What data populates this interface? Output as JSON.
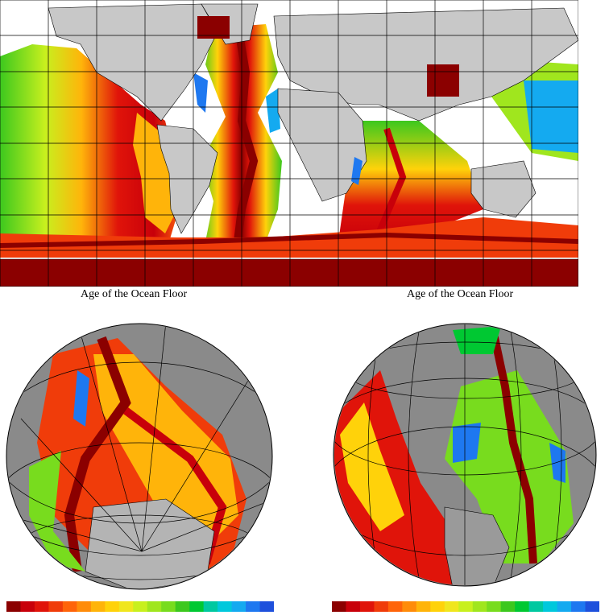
{
  "captions": {
    "left": "Age of the Ocean Floor",
    "right": "Age of the Ocean Floor"
  },
  "colors": {
    "land": "#c8c8c8",
    "globe_land": "#8a8a8a",
    "continental_shelf": "#ffffff",
    "youngest_ridge": "#8b0000",
    "gridline": "#000000",
    "ocean_age_ramp": [
      "#8b0000",
      "#c8000a",
      "#e0140a",
      "#f03c0a",
      "#ff640a",
      "#ff8c0a",
      "#ffb40a",
      "#ffd20a",
      "#f0e61e",
      "#c8f01e",
      "#a0e61e",
      "#78dc1e",
      "#3cc81e",
      "#00c832",
      "#00c8a0",
      "#00c8dc",
      "#14aaf0",
      "#1e78f0",
      "#1e50dc"
    ]
  }
}
